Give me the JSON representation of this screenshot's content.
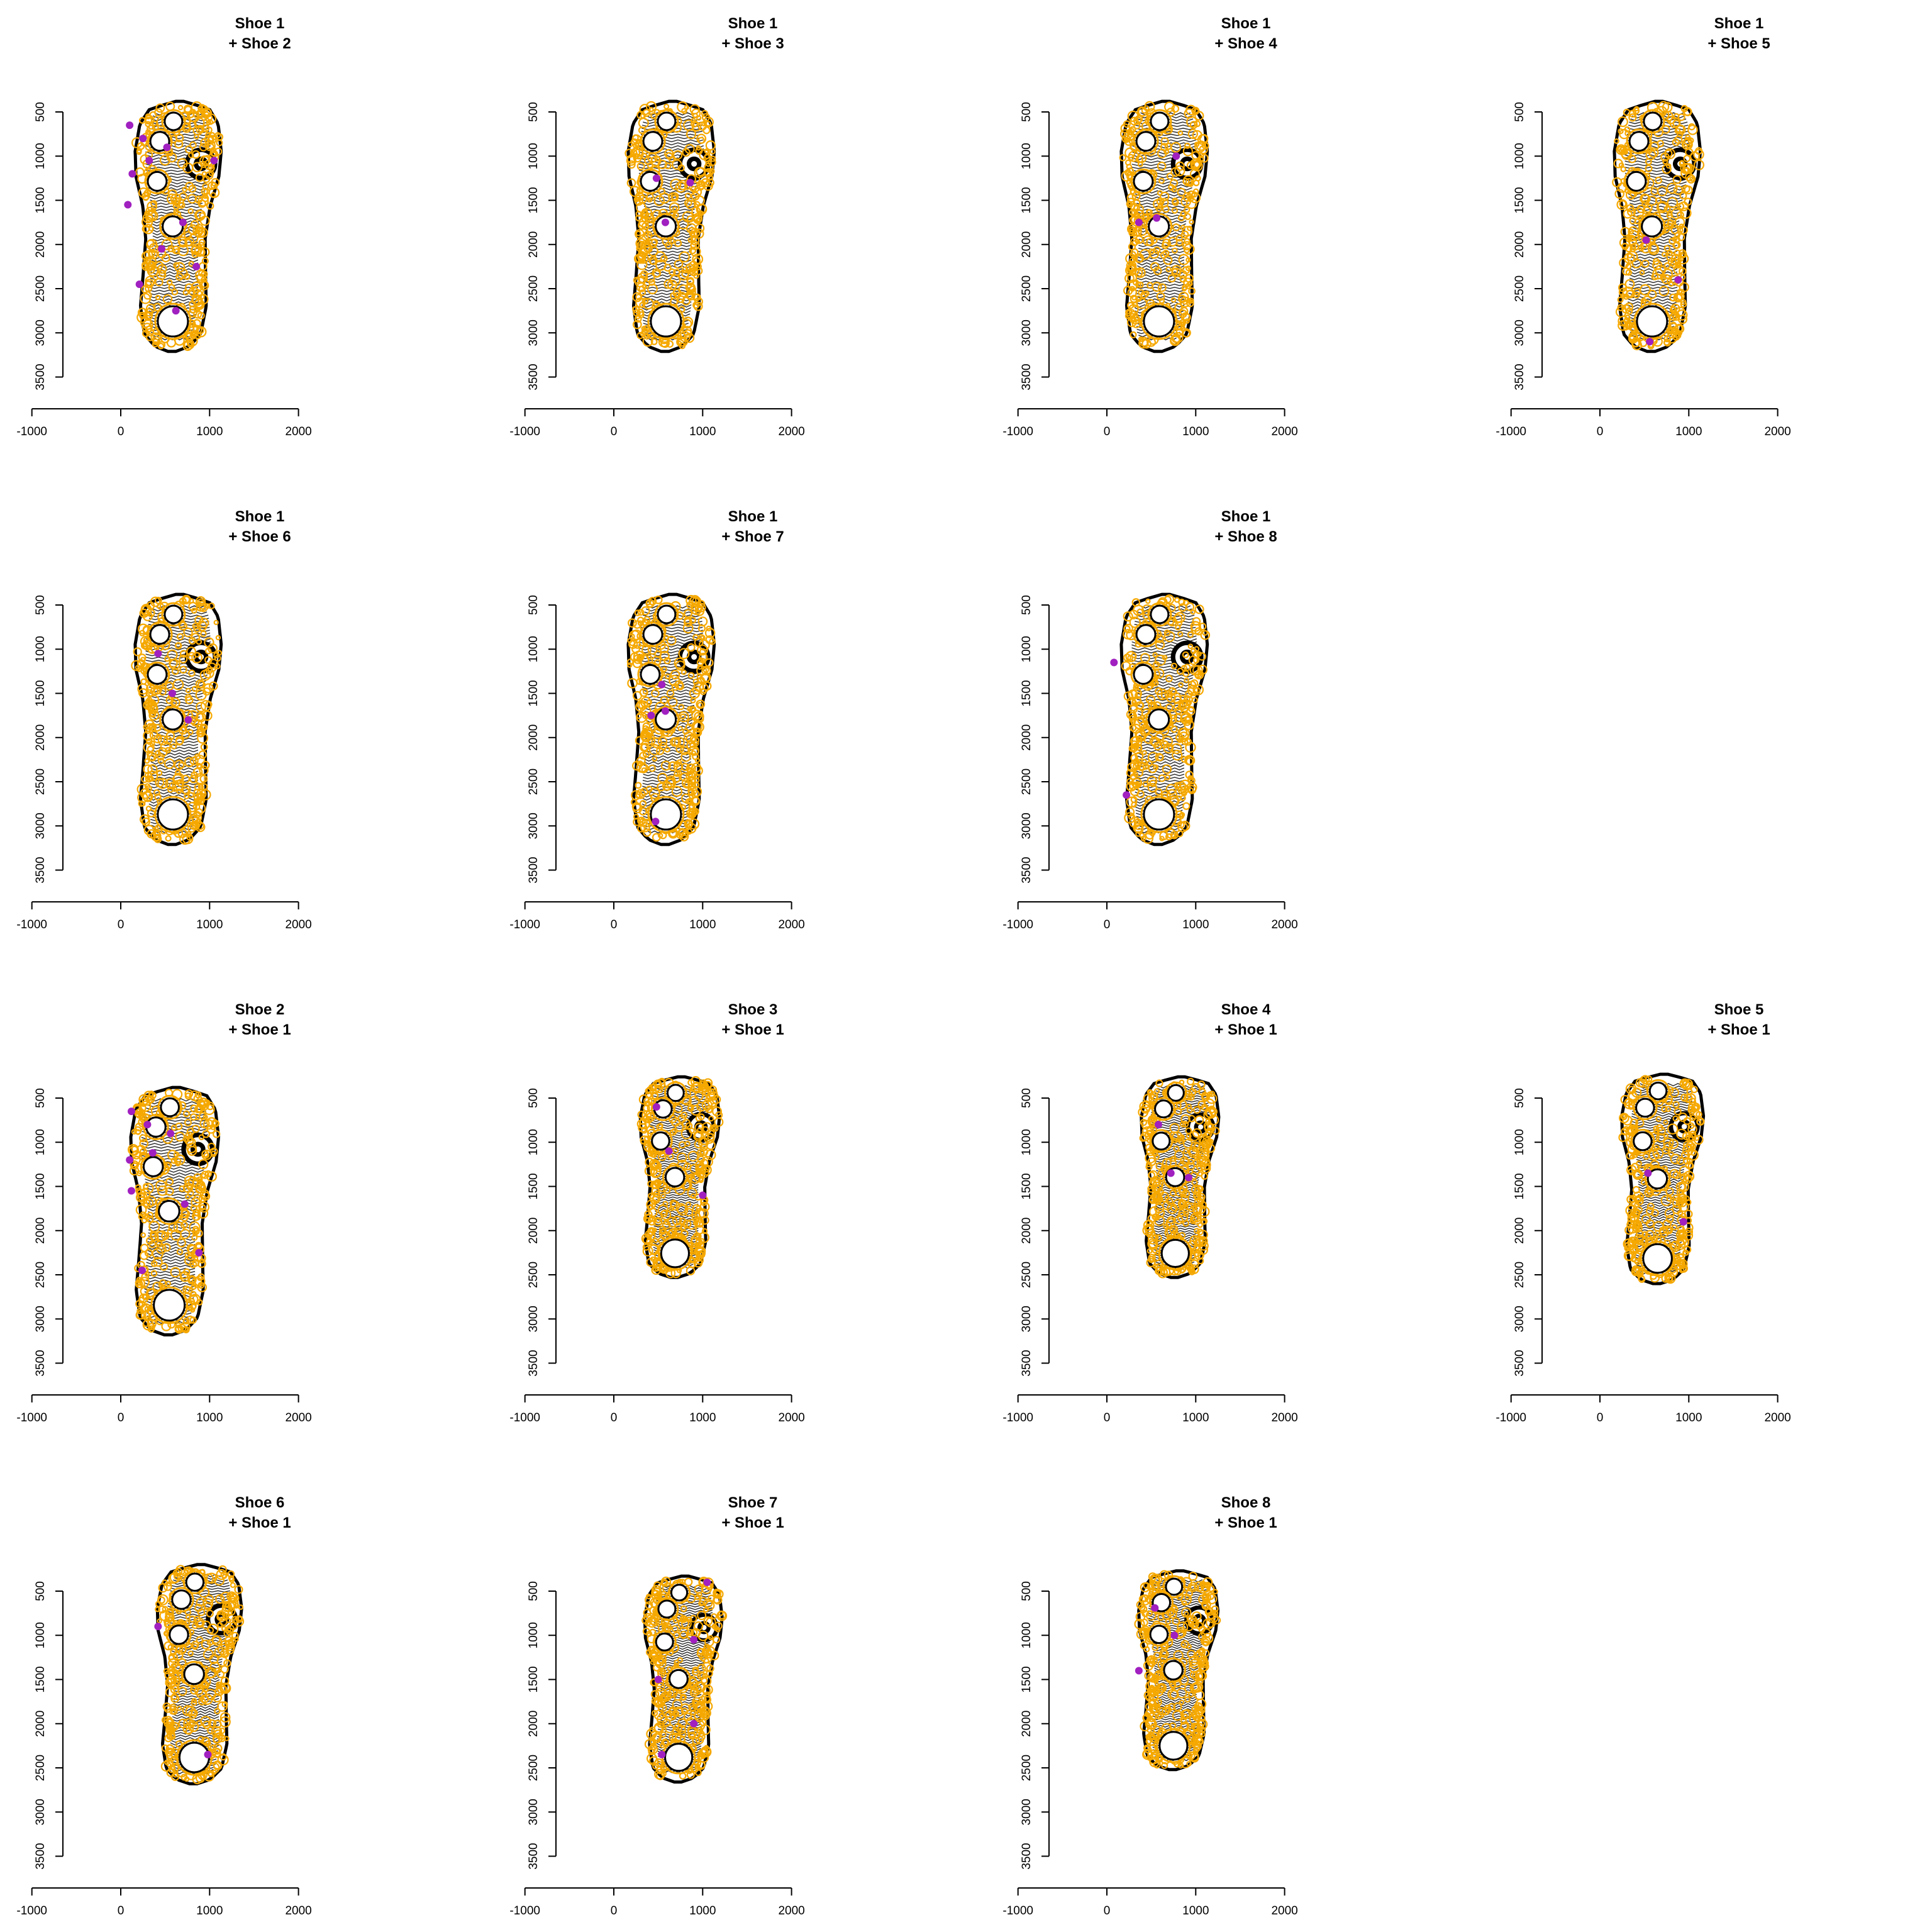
{
  "chart_data": {
    "type": "scatter",
    "layout": {
      "rows": 4,
      "cols": 4
    },
    "xlim": [
      -1000,
      2000
    ],
    "ylim": [
      3500,
      500
    ],
    "x_ticks": [
      -1000,
      0,
      1000,
      2000
    ],
    "y_ticks": [
      500,
      1000,
      1500,
      2000,
      2500,
      3000,
      3500
    ],
    "grid": false,
    "colors": {
      "print": "#000000",
      "overlay": "#F5A800",
      "highlight": "#A020C0"
    },
    "panels": [
      {
        "id": "p1",
        "row": 0,
        "col": 0,
        "title": [
          "Shoe 1",
          "+ Shoe 2"
        ],
        "sole": {
          "cx": 620,
          "top": 380,
          "bottom": 3210,
          "width": 1.0
        },
        "highlights": [
          [
            100,
            650
          ],
          [
            250,
            800
          ],
          [
            130,
            1200
          ],
          [
            320,
            1050
          ],
          [
            520,
            900
          ],
          [
            700,
            1750
          ],
          [
            80,
            1550
          ],
          [
            850,
            2250
          ],
          [
            460,
            2050
          ],
          [
            1050,
            1050
          ],
          [
            210,
            2450
          ],
          [
            620,
            2750
          ]
        ]
      },
      {
        "id": "p2",
        "row": 0,
        "col": 1,
        "title": [
          "Shoe 1",
          "+ Shoe 3"
        ],
        "sole": {
          "cx": 620,
          "top": 380,
          "bottom": 3210,
          "width": 1.0
        },
        "highlights": [
          [
            480,
            1250
          ],
          [
            860,
            1300
          ],
          [
            580,
            1750
          ]
        ]
      },
      {
        "id": "p3",
        "row": 0,
        "col": 2,
        "title": [
          "Shoe 1",
          "+ Shoe 4"
        ],
        "sole": {
          "cx": 620,
          "top": 380,
          "bottom": 3210,
          "width": 1.0
        },
        "highlights": [
          [
            360,
            1750
          ],
          [
            560,
            1700
          ],
          [
            780,
            1000
          ]
        ]
      },
      {
        "id": "p4",
        "row": 0,
        "col": 3,
        "title": [
          "Shoe 1",
          "+ Shoe 5"
        ],
        "sole": {
          "cx": 620,
          "top": 380,
          "bottom": 3210,
          "width": 1.0
        },
        "highlights": [
          [
            880,
            2400
          ],
          [
            520,
            1950
          ],
          [
            560,
            3100
          ]
        ]
      },
      {
        "id": "p5",
        "row": 1,
        "col": 0,
        "title": [
          "Shoe 1",
          "+ Shoe 6"
        ],
        "sole": {
          "cx": 620,
          "top": 380,
          "bottom": 3210,
          "width": 1.0
        },
        "highlights": [
          [
            420,
            1050
          ],
          [
            580,
            1500
          ],
          [
            760,
            1800
          ]
        ]
      },
      {
        "id": "p6",
        "row": 1,
        "col": 1,
        "title": [
          "Shoe 1",
          "+ Shoe 7"
        ],
        "sole": {
          "cx": 620,
          "top": 380,
          "bottom": 3210,
          "width": 1.0
        },
        "highlights": [
          [
            420,
            1750
          ],
          [
            580,
            1700
          ],
          [
            540,
            1400
          ],
          [
            470,
            2950
          ]
        ]
      },
      {
        "id": "p7",
        "row": 1,
        "col": 2,
        "title": [
          "Shoe 1",
          "+ Shoe 8"
        ],
        "sole": {
          "cx": 620,
          "top": 380,
          "bottom": 3210,
          "width": 1.0
        },
        "highlights": [
          [
            80,
            1150
          ],
          [
            220,
            2650
          ]
        ]
      },
      {
        "id": "p8",
        "row": 2,
        "col": 0,
        "title": [
          "Shoe 2",
          "+ Shoe 1"
        ],
        "sole": {
          "cx": 580,
          "top": 380,
          "bottom": 3180,
          "width": 1.02
        },
        "highlights": [
          [
            120,
            650
          ],
          [
            300,
            800
          ],
          [
            100,
            1200
          ],
          [
            360,
            1120
          ],
          [
            560,
            900
          ],
          [
            720,
            1700
          ],
          [
            120,
            1550
          ],
          [
            880,
            2250
          ],
          [
            240,
            2450
          ]
        ]
      },
      {
        "id": "p9",
        "row": 2,
        "col": 1,
        "title": [
          "Shoe 3",
          "+ Shoe 1"
        ],
        "sole": {
          "cx": 720,
          "top": 260,
          "bottom": 2530,
          "width": 0.92
        },
        "highlights": [
          [
            620,
            1100
          ],
          [
            1000,
            1600
          ],
          [
            480,
            600
          ]
        ]
      },
      {
        "id": "p10",
        "row": 2,
        "col": 2,
        "title": [
          "Shoe 4",
          "+ Shoe 1"
        ],
        "sole": {
          "cx": 800,
          "top": 260,
          "bottom": 2530,
          "width": 0.9
        },
        "highlights": [
          [
            580,
            800
          ],
          [
            920,
            1400
          ],
          [
            720,
            1350
          ]
        ]
      },
      {
        "id": "p11",
        "row": 2,
        "col": 3,
        "title": [
          "Shoe 5",
          "+ Shoe 1"
        ],
        "sole": {
          "cx": 680,
          "top": 230,
          "bottom": 2600,
          "width": 0.95
        },
        "highlights": [
          [
            940,
            1900
          ],
          [
            540,
            1350
          ]
        ]
      },
      {
        "id": "p12",
        "row": 3,
        "col": 0,
        "title": [
          "Shoe 6",
          "+ Shoe 1"
        ],
        "sole": {
          "cx": 860,
          "top": 200,
          "bottom": 2680,
          "width": 0.98
        },
        "highlights": [
          [
            420,
            900
          ],
          [
            980,
            2350
          ]
        ]
      },
      {
        "id": "p13",
        "row": 3,
        "col": 1,
        "title": [
          "Shoe 7",
          "+ Shoe 1"
        ],
        "sole": {
          "cx": 760,
          "top": 330,
          "bottom": 2660,
          "width": 0.9
        },
        "highlights": [
          [
            1050,
            400
          ],
          [
            900,
            1050
          ],
          [
            500,
            1500
          ],
          [
            900,
            2000
          ],
          [
            540,
            2350
          ]
        ]
      },
      {
        "id": "p14",
        "row": 3,
        "col": 2,
        "title": [
          "Shoe 8",
          "+ Shoe 1"
        ],
        "sole": {
          "cx": 780,
          "top": 270,
          "bottom": 2520,
          "width": 0.92
        },
        "highlights": [
          [
            540,
            690
          ],
          [
            760,
            1000
          ],
          [
            360,
            1400
          ]
        ]
      }
    ]
  }
}
